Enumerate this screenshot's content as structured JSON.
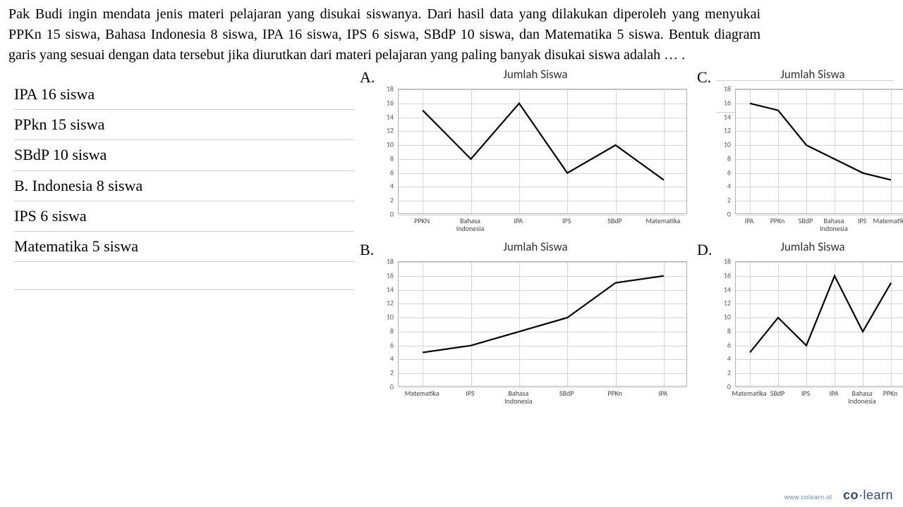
{
  "question": "Pak Budi ingin mendata jenis materi pelajaran yang disukai siswanya. Dari hasil data yang dilakukan diperoleh yang menyukai PPKn 15 siswa, Bahasa Indonesia 8 siswa, IPA 16 siswa, IPS 6 siswa, SBdP 10 siswa, dan Matematika 5 siswa. Bentuk diagram garis yang sesuai dengan data tersebut jika diurutkan dari materi pelajaran yang paling banyak disukai siswa adalah … .",
  "chart_common": {
    "title": "Jumlah Siswa",
    "ylim": [
      0,
      18
    ],
    "ytick_step": 2,
    "grid_color": "#d5d5d5",
    "line_color": "#000000",
    "line_width": 2.2,
    "plot_bg": "#ffffff",
    "font_family": "Calibri"
  },
  "options": {
    "A": {
      "label": "A.",
      "categories": [
        "PPKN",
        "Bahasa\nIndonesia",
        "IPA",
        "IPS",
        "SBdP",
        "Matematika"
      ],
      "values": [
        15,
        8,
        16,
        6,
        10,
        5
      ]
    },
    "B": {
      "label": "B.",
      "categories": [
        "Matematika",
        "IPS",
        "Bahasa\nIndonesia",
        "SBdP",
        "PPKn",
        "IPA"
      ],
      "values": [
        5,
        6,
        8,
        10,
        15,
        16
      ]
    },
    "C": {
      "label": "C.",
      "categories": [
        "IPA",
        "PPKn",
        "SBdP",
        "Bahasa\nIndonesia",
        "IPS",
        "Matematika"
      ],
      "values": [
        16,
        15,
        10,
        8,
        6,
        5
      ]
    },
    "D": {
      "label": "D.",
      "categories": [
        "Matematika",
        "SBdP",
        "IPS",
        "IPA",
        "Bahasa\nIndonesia",
        "PPKn"
      ],
      "values": [
        5,
        10,
        6,
        16,
        8,
        15
      ]
    }
  },
  "answers": [
    "IPA 16 siswa",
    "PPkn 15 siswa",
    "SBdP 10 siswa",
    "B. Indonesia 8 siswa",
    "IPS 6 siswa",
    "Matematika 5 siswa"
  ],
  "logo_url": "www.colearn.id",
  "logo_text": "co·learn"
}
